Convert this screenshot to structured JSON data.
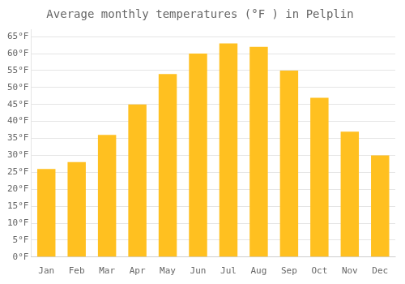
{
  "chart_data": {
    "type": "bar",
    "title": "Average monthly temperatures (°F ) in Pelplin",
    "categories": [
      "Jan",
      "Feb",
      "Mar",
      "Apr",
      "May",
      "Jun",
      "Jul",
      "Aug",
      "Sep",
      "Oct",
      "Nov",
      "Dec"
    ],
    "values": [
      26,
      28,
      36,
      45,
      54,
      60,
      63,
      62,
      55,
      47,
      37,
      30
    ],
    "color": "#FFC020",
    "ylim": [
      0,
      67
    ],
    "yticks": [
      {
        "value": 0,
        "label": "0°F"
      },
      {
        "value": 5,
        "label": "5°F"
      },
      {
        "value": 10,
        "label": "10°F"
      },
      {
        "value": 15,
        "label": "15°F"
      },
      {
        "value": 20,
        "label": "20°F"
      },
      {
        "value": 25,
        "label": "25°F"
      },
      {
        "value": 30,
        "label": "30°F"
      },
      {
        "value": 35,
        "label": "35°F"
      },
      {
        "value": 40,
        "label": "40°F"
      },
      {
        "value": 45,
        "label": "45°F"
      },
      {
        "value": 50,
        "label": "50°F"
      },
      {
        "value": 55,
        "label": "55°F"
      },
      {
        "value": 60,
        "label": "60°F"
      },
      {
        "value": 65,
        "label": "65°F"
      }
    ],
    "grid": true
  }
}
